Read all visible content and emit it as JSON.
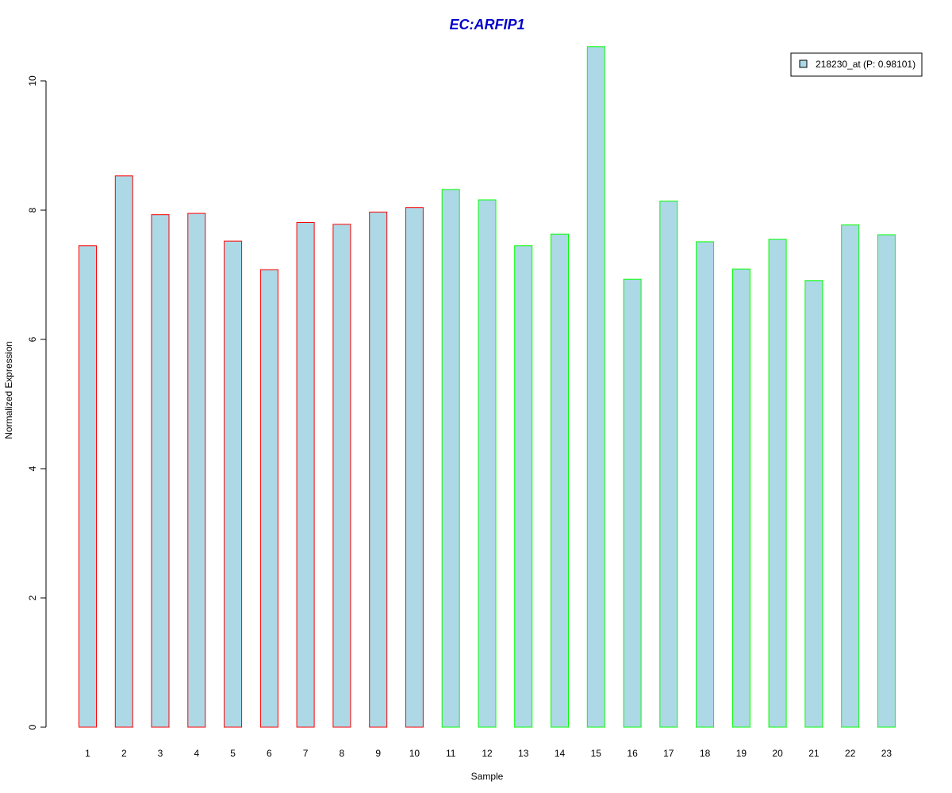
{
  "chart_data": {
    "type": "bar",
    "title": "EC:ARFIP1",
    "xlabel": "Sample",
    "ylabel": "Normalized Expression",
    "ylim": [
      0,
      10.5
    ],
    "yticks": [
      0,
      2,
      4,
      6,
      8,
      10
    ],
    "categories": [
      "1",
      "2",
      "3",
      "4",
      "5",
      "6",
      "7",
      "8",
      "9",
      "10",
      "11",
      "12",
      "13",
      "14",
      "15",
      "16",
      "17",
      "18",
      "19",
      "20",
      "21",
      "22",
      "23"
    ],
    "series": [
      {
        "name": "218230_at (P: 0.98101)",
        "values": [
          7.45,
          8.53,
          7.93,
          7.95,
          7.52,
          7.08,
          7.81,
          7.78,
          7.97,
          8.04,
          8.32,
          8.16,
          7.45,
          7.63,
          10.53,
          6.93,
          8.14,
          7.51,
          7.09,
          7.55,
          6.91,
          7.77,
          7.62
        ]
      }
    ],
    "groups": [
      1,
      1,
      1,
      1,
      1,
      1,
      1,
      1,
      1,
      1,
      2,
      2,
      2,
      2,
      2,
      2,
      2,
      2,
      2,
      2,
      2,
      2,
      2
    ],
    "colors": {
      "bar_fill": "#add8e6",
      "group1_border": "#ff0000",
      "group2_border": "#00ff00",
      "title": "#0000cd"
    },
    "legend_placement": "top-right",
    "grid": false
  }
}
